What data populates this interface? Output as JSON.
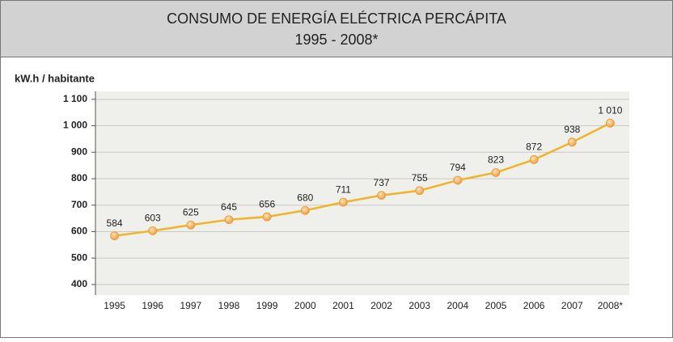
{
  "chart_data": {
    "type": "line",
    "title": "CONSUMO DE ENERGÍA ELÉCTRICA PERCÁPITA",
    "subtitle": "1995 - 2008*",
    "y_label": "kW.h / habitante",
    "categories": [
      "1995",
      "1996",
      "1997",
      "1998",
      "1999",
      "2000",
      "2001",
      "2002",
      "2003",
      "2004",
      "2005",
      "2006",
      "2007",
      "2008*"
    ],
    "series": [
      {
        "name": "kW.h / habitante",
        "color": "#f0b429",
        "values": [
          584,
          603,
          625,
          645,
          656,
          680,
          711,
          737,
          755,
          794,
          823,
          872,
          938,
          1010
        ],
        "value_labels": [
          "584",
          "603",
          "625",
          "645",
          "656",
          "680",
          "711",
          "737",
          "755",
          "794",
          "823",
          "872",
          "938",
          "1 010"
        ]
      }
    ],
    "ylim": [
      360,
      1130
    ],
    "yticks": [
      400,
      500,
      600,
      700,
      800,
      900,
      {
        "value": 1000,
        "label": "1 000"
      },
      {
        "value": 1100,
        "label": "1 100"
      }
    ],
    "grid": true
  }
}
